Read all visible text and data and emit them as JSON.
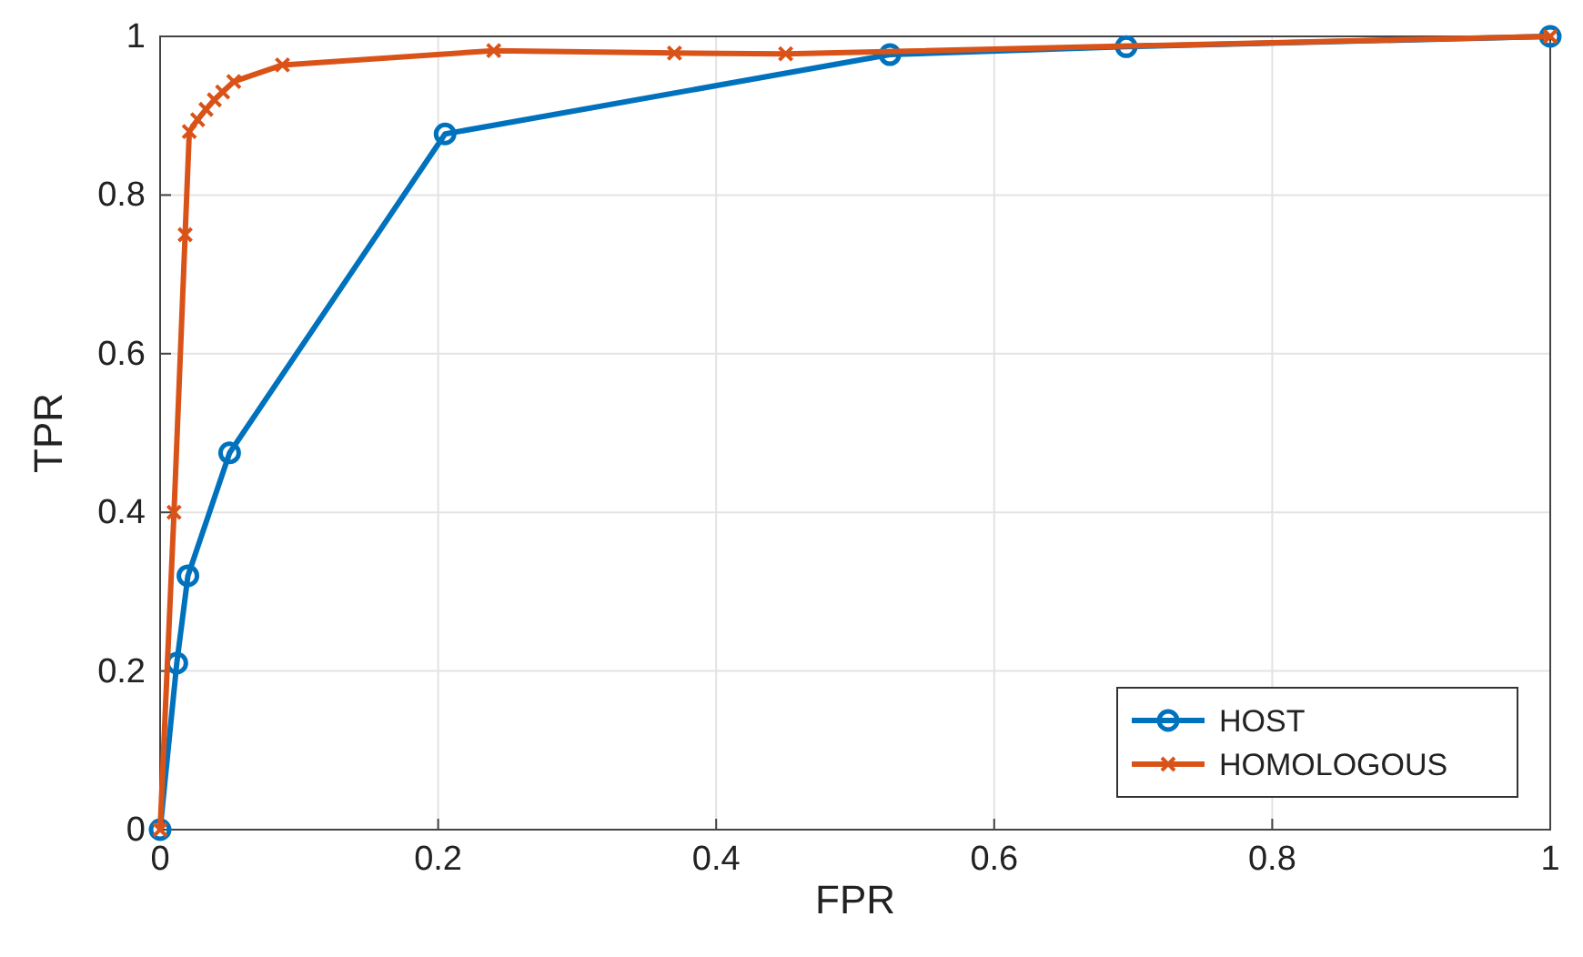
{
  "chart_data": {
    "type": "line",
    "xlabel": "FPR",
    "ylabel": "TPR",
    "xlim": [
      0,
      1
    ],
    "ylim": [
      0,
      1
    ],
    "xticks": [
      0,
      0.2,
      0.4,
      0.6,
      0.8,
      1
    ],
    "yticks": [
      0,
      0.2,
      0.4,
      0.6,
      0.8,
      1
    ],
    "grid": true,
    "legend": "bottom right",
    "series": [
      {
        "name": "HOST",
        "color": "#0072bd",
        "marker": "circle",
        "x": [
          0,
          0.012,
          0.02,
          0.05,
          0.205,
          0.525,
          0.695,
          1
        ],
        "values": [
          0,
          0.21,
          0.32,
          0.475,
          0.877,
          0.977,
          0.987,
          1
        ]
      },
      {
        "name": "HOMOLOGOUS",
        "color": "#d95319",
        "marker": "cross",
        "x": [
          0,
          0.01,
          0.018,
          0.021,
          0.027,
          0.033,
          0.039,
          0.045,
          0.053,
          0.088,
          0.24,
          0.37,
          0.45,
          1
        ],
        "values": [
          0,
          0.4,
          0.75,
          0.88,
          0.895,
          0.908,
          0.92,
          0.93,
          0.943,
          0.964,
          0.982,
          0.979,
          0.978,
          1
        ]
      }
    ]
  }
}
